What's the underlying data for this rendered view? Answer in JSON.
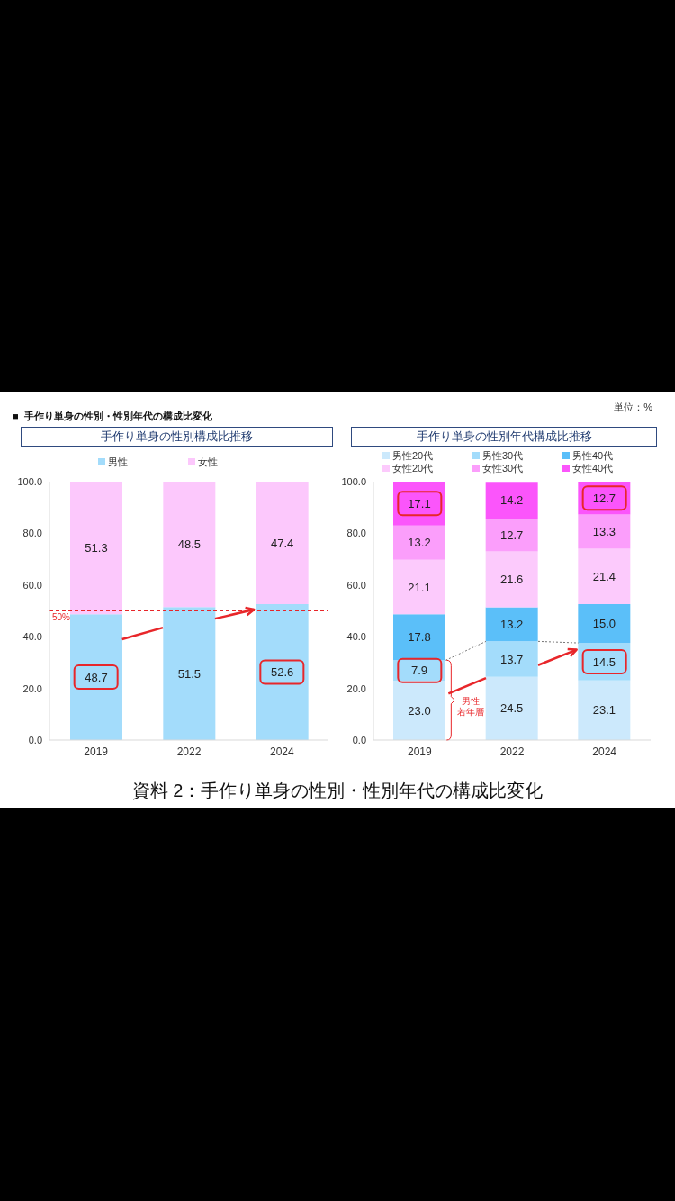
{
  "chart_data": [
    {
      "type": "bar",
      "title": "手作り単身の性別構成比推移",
      "categories": [
        "2019",
        "2022",
        "2024"
      ],
      "stacked": true,
      "series": [
        {
          "name": "男性",
          "color": "#a3dcfb",
          "values": [
            48.7,
            51.5,
            52.6
          ],
          "value_labels": [
            "48.7",
            "51.5",
            "52.6"
          ]
        },
        {
          "name": "女性",
          "color": "#fcc8fc",
          "values": [
            51.3,
            48.5,
            47.4
          ],
          "value_labels": [
            "51.3",
            "48.5",
            "47.4"
          ]
        }
      ],
      "ylim": [
        0,
        100
      ],
      "yticks": [
        {
          "value": 0,
          "label": "0.0"
        },
        {
          "value": 20,
          "label": "20.0"
        },
        {
          "value": 40,
          "label": "40.0"
        },
        {
          "value": 60,
          "label": "60.0"
        },
        {
          "value": 80,
          "label": "80.0"
        },
        {
          "value": 100,
          "label": "100.0"
        }
      ],
      "ref_lines": [
        {
          "axis": "y",
          "value": 50,
          "label": "50%",
          "color": "#e8262a",
          "line_style": "dashed"
        }
      ],
      "legend": "top",
      "grid": false,
      "annotations": [
        "■  手作り単身の性別・性別年代の構成比変化",
        "資料 2：手作り単身の性別・性別年代の構成比変化"
      ]
    },
    {
      "type": "bar",
      "title": "手作り単身の性別年代構成比推移",
      "categories": [
        "2019",
        "2022",
        "2024"
      ],
      "stacked": true,
      "series": [
        {
          "name": "男性20代",
          "color": "#cce9fc",
          "values": [
            23.0,
            24.5,
            23.1
          ],
          "value_labels": [
            "23.0",
            "24.5",
            "23.1"
          ]
        },
        {
          "name": "男性30代",
          "color": "#a3dcfb",
          "values": [
            7.9,
            13.7,
            14.5
          ],
          "value_labels": [
            "7.9",
            "13.7",
            "14.5"
          ]
        },
        {
          "name": "男性40代",
          "color": "#5bbff9",
          "values": [
            17.8,
            13.2,
            15.0
          ],
          "value_labels": [
            "17.8",
            "13.2",
            "15.0"
          ]
        },
        {
          "name": "女性20代",
          "color": "#fccafc",
          "values": [
            21.1,
            21.6,
            21.4
          ],
          "value_labels": [
            "21.1",
            "21.6",
            "21.4"
          ]
        },
        {
          "name": "女性30代",
          "color": "#fb9efb",
          "values": [
            13.2,
            12.7,
            13.3
          ],
          "value_labels": [
            "13.2",
            "12.7",
            "13.3"
          ]
        },
        {
          "name": "女性40代",
          "color": "#fb55fb",
          "values": [
            17.1,
            14.2,
            12.7
          ],
          "value_labels": [
            "17.1",
            "14.2",
            "12.7"
          ]
        }
      ],
      "ylim": [
        0,
        100
      ],
      "yticks": [
        {
          "value": 0,
          "label": "0.0"
        },
        {
          "value": 20,
          "label": "20.0"
        },
        {
          "value": 40,
          "label": "40.0"
        },
        {
          "value": 60,
          "label": "60.0"
        },
        {
          "value": 80,
          "label": "80.0"
        },
        {
          "value": 100,
          "label": "100.0"
        }
      ],
      "legend": "top",
      "grid": false,
      "annotations": [
        "単位：%",
        "男性",
        "若年層"
      ]
    }
  ]
}
